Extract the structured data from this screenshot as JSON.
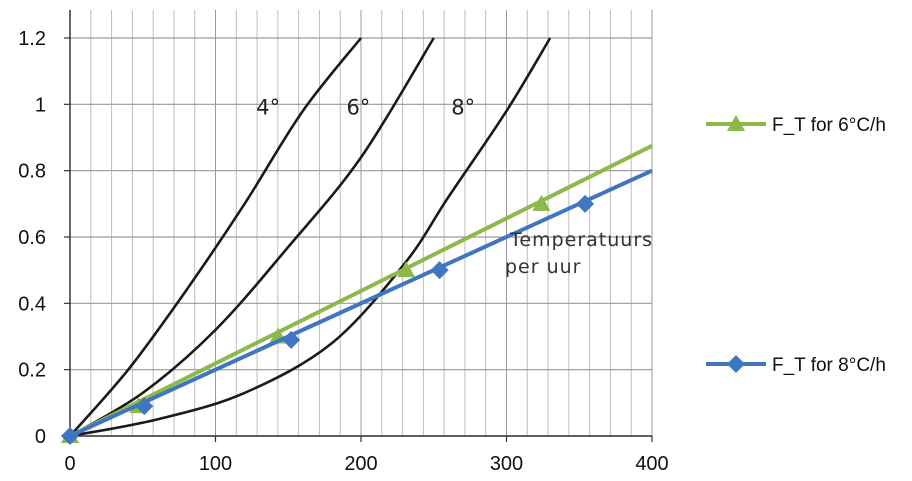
{
  "chart_data": {
    "type": "line",
    "title": "",
    "xlabel": "",
    "ylabel": "",
    "xlim": [
      0,
      400
    ],
    "ylim": [
      0,
      1.2
    ],
    "x_ticks": [
      "0",
      "100",
      "200",
      "300",
      "400"
    ],
    "y_ticks": [
      "0",
      "0.2",
      "0.4",
      "0.6",
      "0.8",
      "1",
      "1.2"
    ],
    "grid": true,
    "legend_position": "right",
    "series": [
      {
        "name": "F_T for 6°C/h",
        "color": "#8db84a",
        "marker": "triangle",
        "x": [
          0,
          47,
          143,
          231,
          324
        ],
        "y": [
          0,
          0.09,
          0.3,
          0.5,
          0.7
        ],
        "line_x": [
          0,
          400
        ],
        "line_y": [
          0,
          0.875
        ]
      },
      {
        "name": "F_T for 8°C/h",
        "color": "#3f76bf",
        "marker": "diamond",
        "x": [
          0,
          51,
          152,
          254,
          354
        ],
        "y": [
          0,
          0.09,
          0.29,
          0.5,
          0.7
        ],
        "line_x": [
          0,
          400
        ],
        "line_y": [
          0,
          0.8
        ]
      }
    ],
    "background_curves": [
      {
        "label": "4°",
        "color": "#1a1a1a",
        "x": [
          0,
          40,
          80,
          120,
          160,
          200
        ],
        "y": [
          0,
          0.2,
          0.44,
          0.7,
          0.98,
          1.2
        ]
      },
      {
        "label": "6°",
        "color": "#1a1a1a",
        "x": [
          0,
          50,
          100,
          150,
          200,
          250
        ],
        "y": [
          0,
          0.13,
          0.32,
          0.57,
          0.84,
          1.2
        ]
      },
      {
        "label": "8°",
        "color": "#1a1a1a",
        "x": [
          0,
          60,
          120,
          180,
          230,
          260,
          300,
          330
        ],
        "y": [
          0,
          0.05,
          0.13,
          0.28,
          0.52,
          0.72,
          0.98,
          1.2
        ]
      }
    ],
    "annotation": [
      "Temperatuurs",
      "per uur"
    ]
  }
}
